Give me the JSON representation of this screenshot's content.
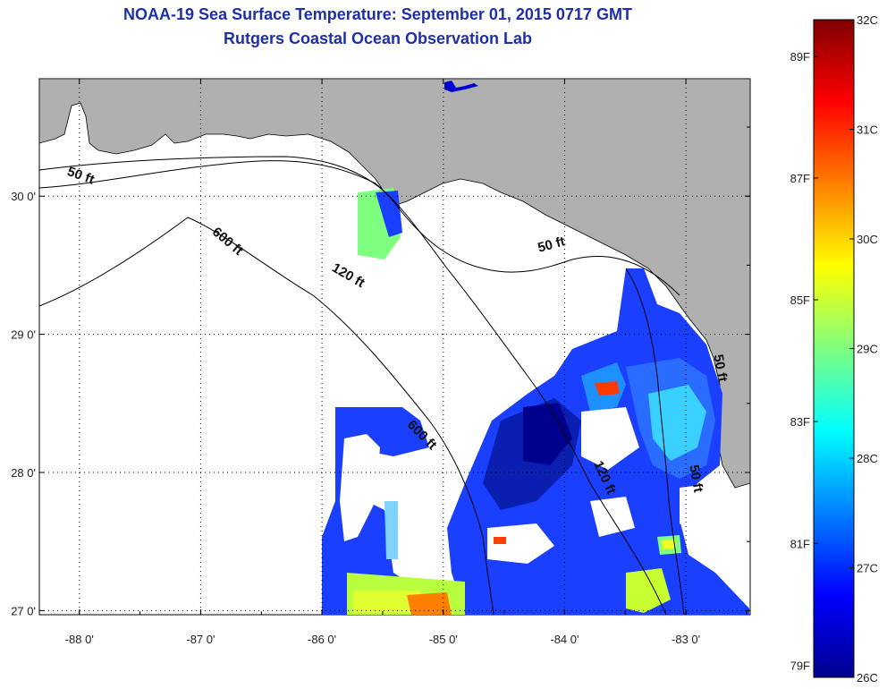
{
  "title": {
    "line1": "NOAA-19 Sea Surface Temperature:  September 01, 2015 0717 GMT",
    "line2": "Rutgers Coastal Ocean Observation Lab"
  },
  "map": {
    "lon_range": [
      -88.33,
      -82.47
    ],
    "lat_range": [
      26.97,
      30.85
    ],
    "x_ticks": [
      {
        "value": -88,
        "label": "-88 0'"
      },
      {
        "value": -87,
        "label": "-87 0'"
      },
      {
        "value": -86,
        "label": "-86 0'"
      },
      {
        "value": -85,
        "label": "-85 0'"
      },
      {
        "value": -84,
        "label": "-84 0'"
      },
      {
        "value": -83,
        "label": "-83 0'"
      }
    ],
    "y_ticks": [
      {
        "value": 30,
        "label": "30 0'"
      },
      {
        "value": 29,
        "label": "29 0'"
      },
      {
        "value": 28,
        "label": "28 0'"
      },
      {
        "value": 27,
        "label": "27 0'"
      }
    ],
    "grid": "dotted",
    "land_color": "#b0b0b0",
    "no_data_color": "#ffffff",
    "contour_labels": [
      {
        "text": "50 ft",
        "lon": -88.0,
        "lat": 30.12,
        "rotate": 20
      },
      {
        "text": "600 ft",
        "lon": -86.8,
        "lat": 29.65,
        "rotate": 40
      },
      {
        "text": "120 ft",
        "lon": -85.8,
        "lat": 29.4,
        "rotate": 30
      },
      {
        "text": "50 ft",
        "lon": -84.1,
        "lat": 29.62,
        "rotate": -15
      },
      {
        "text": "600 ft",
        "lon": -85.2,
        "lat": 28.25,
        "rotate": 45
      },
      {
        "text": "120 ft",
        "lon": -83.7,
        "lat": 27.95,
        "rotate": 65
      },
      {
        "text": "50 ft",
        "lon": -82.95,
        "lat": 27.95,
        "rotate": 80
      },
      {
        "text": "50 ft",
        "lon": -82.75,
        "lat": 28.75,
        "rotate": 80
      }
    ]
  },
  "colorbar": {
    "colormap": "jet",
    "range_c": [
      26,
      32
    ],
    "celsius_labels": [
      "32C",
      "31C",
      "30C",
      "29C",
      "28C",
      "27C",
      "26C"
    ],
    "fahrenheit_labels": [
      {
        "value": 89,
        "label": "89F"
      },
      {
        "value": 87,
        "label": "87F"
      },
      {
        "value": 85,
        "label": "85F"
      },
      {
        "value": 83,
        "label": "83F"
      },
      {
        "value": 81,
        "label": "81F"
      },
      {
        "value": 79,
        "label": "79F"
      }
    ]
  }
}
